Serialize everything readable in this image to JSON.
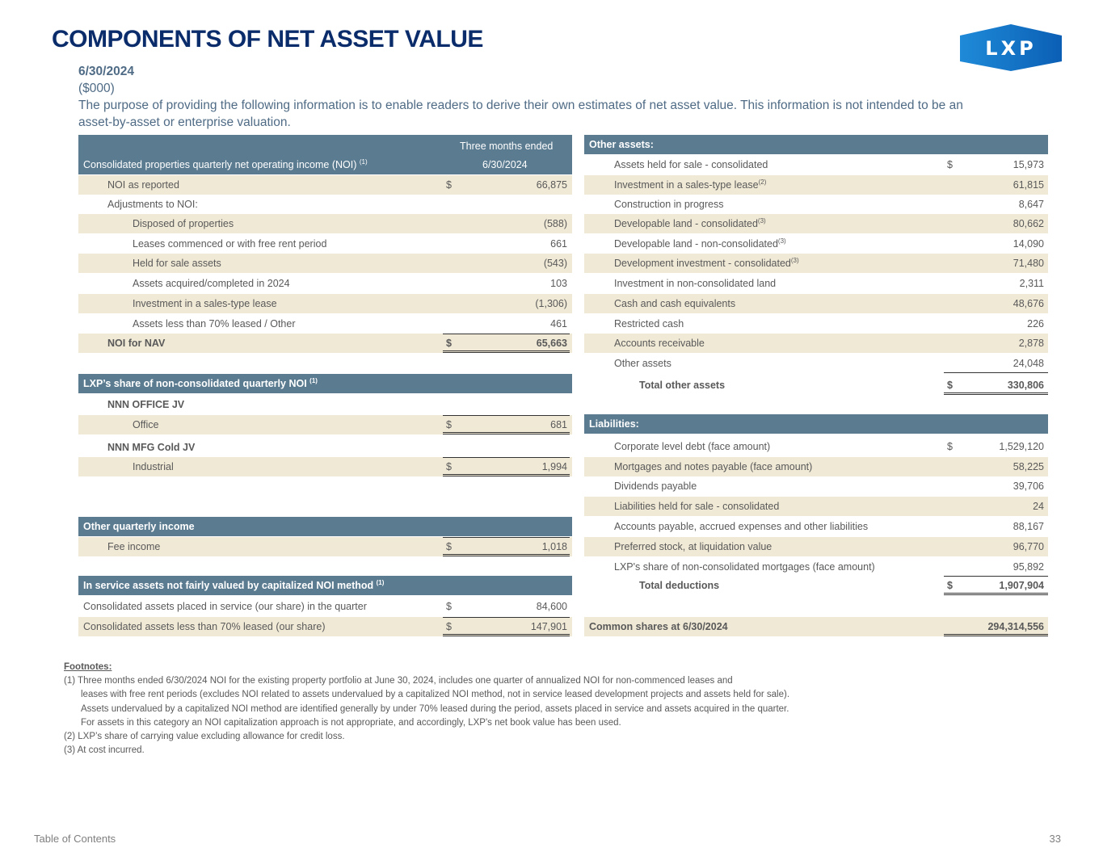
{
  "title": "COMPONENTS OF NET ASSET VALUE",
  "logo_text": "LXP",
  "date": "6/30/2024",
  "units": "($000)",
  "purpose_line1": "The purpose of providing the following information is to enable readers to derive their own estimates of net asset value. This information is not intended to be an",
  "purpose_line2": "asset-by-asset or enterprise valuation.",
  "left_header": {
    "label": "Consolidated properties quarterly net operating income (NOI)",
    "sup": "(1)",
    "col_line1": "Three months ended",
    "col_line2": "6/30/2024"
  },
  "left_rows": [
    {
      "label": "NOI as reported",
      "dollar": "$",
      "value": "66,875",
      "style": "beige",
      "indent": 1
    },
    {
      "label": "Adjustments to NOI:",
      "value": "",
      "style": "white",
      "indent": 1
    },
    {
      "label": "Disposed of properties",
      "value": "(588)",
      "style": "beige",
      "indent": 2
    },
    {
      "label": "Leases commenced or with free rent period",
      "value": "661",
      "style": "white",
      "indent": 2
    },
    {
      "label": "Held for sale assets",
      "value": "(543)",
      "style": "beige",
      "indent": 2
    },
    {
      "label": "Assets acquired/completed in 2024",
      "value": "103",
      "style": "white",
      "indent": 2
    },
    {
      "label": "Investment in a sales-type lease",
      "value": "(1,306)",
      "style": "beige",
      "indent": 2
    },
    {
      "label": "Assets less than 70% leased / Other",
      "value": "461",
      "style": "white",
      "indent": 2
    },
    {
      "label": "NOI for NAV",
      "dollar": "$",
      "value": "65,663",
      "style": "beige bold",
      "indent": 1
    },
    {
      "label": "LXP’s share of non-consolidated quarterly NOI",
      "sup": "(1)",
      "value": "",
      "style": "hdr",
      "indent": 0
    },
    {
      "label": "NNN OFFICE JV",
      "value": "",
      "style": "white bold",
      "indent": 1
    },
    {
      "label": "Office",
      "dollar": "$",
      "value": "681",
      "style": "beige",
      "indent": 2
    },
    {
      "label": "NNN MFG Cold JV",
      "value": "",
      "style": "white bold",
      "indent": 1
    },
    {
      "label": "Industrial",
      "dollar": "$",
      "value": "1,994",
      "style": "beige",
      "indent": 2
    },
    {
      "label": "Other quarterly income",
      "value": "",
      "style": "hdr",
      "indent": 0
    },
    {
      "label": "Fee income",
      "dollar": "$",
      "value": "1,018",
      "style": "beige",
      "indent": 1
    },
    {
      "label": "In service assets not fairly valued by capitalized NOI method",
      "sup": "(1)",
      "value": "",
      "style": "hdr",
      "indent": 0
    },
    {
      "label": "Consolidated assets placed in service (our share) in the quarter",
      "dollar": "$",
      "value": "84,600",
      "style": "white",
      "indent": 0
    },
    {
      "label": "Consolidated assets less than 70% leased (our share)",
      "dollar": "$",
      "value": "147,901",
      "style": "beige",
      "indent": 0
    }
  ],
  "right_rows": [
    {
      "label": "Other assets:",
      "value": "",
      "style": "hdr",
      "indent": 0
    },
    {
      "label": "Assets held for sale - consolidated",
      "dollar": "$",
      "value": "15,973",
      "style": "white",
      "indent": 1
    },
    {
      "label": "Investment in a sales-type lease",
      "sup": "(2)",
      "value": "61,815",
      "style": "beige",
      "indent": 1
    },
    {
      "label": "Construction in progress",
      "value": "8,647",
      "style": "white",
      "indent": 1
    },
    {
      "label": "Developable land - consolidated",
      "sup": "(3)",
      "value": "80,662",
      "style": "beige",
      "indent": 1
    },
    {
      "label": "Developable land - non-consolidated",
      "sup": "(3)",
      "value": "14,090",
      "style": "white",
      "indent": 1
    },
    {
      "label": "Development investment - consolidated",
      "sup": "(3)",
      "value": "71,480",
      "style": "beige",
      "indent": 1
    },
    {
      "label": "Investment in non-consolidated land",
      "value": "2,311",
      "style": "white",
      "indent": 1
    },
    {
      "label": "Cash and cash equivalents",
      "value": "48,676",
      "style": "beige",
      "indent": 1
    },
    {
      "label": "Restricted cash",
      "value": "226",
      "style": "white",
      "indent": 1
    },
    {
      "label": "Accounts receivable",
      "value": "2,878",
      "style": "beige",
      "indent": 1
    },
    {
      "label": "Other assets",
      "value": "24,048",
      "style": "white",
      "indent": 1
    },
    {
      "label": "Total other assets",
      "dollar": "$",
      "value": "330,806",
      "style": "white bold",
      "indent": 2
    },
    {
      "label": "Liabilities:",
      "value": "",
      "style": "hdr",
      "indent": 0
    },
    {
      "label": "Corporate level debt (face amount)",
      "dollar": "$",
      "value": "1,529,120",
      "style": "white",
      "indent": 1
    },
    {
      "label": "Mortgages and notes payable (face amount)",
      "value": "58,225",
      "style": "beige",
      "indent": 1
    },
    {
      "label": "Dividends payable",
      "value": "39,706",
      "style": "white",
      "indent": 1
    },
    {
      "label": "Liabilities held for sale - consolidated",
      "value": "24",
      "style": "beige",
      "indent": 1
    },
    {
      "label": "Accounts payable, accrued expenses and other liabilities",
      "value": "88,167",
      "style": "white",
      "indent": 1
    },
    {
      "label": "Preferred stock, at liquidation value",
      "value": "96,770",
      "style": "beige",
      "indent": 1
    },
    {
      "label": "LXP's share of non-consolidated mortgages (face amount)",
      "value": "95,892",
      "style": "white",
      "indent": 1
    },
    {
      "label": "Total deductions",
      "dollar": "$",
      "value": "1,907,904",
      "style": "white bold",
      "indent": 2
    },
    {
      "label": "Common shares at 6/30/2024",
      "value": "294,314,556",
      "style": "beige bold",
      "indent": 0
    }
  ],
  "footnotes": {
    "heading": "Footnotes:",
    "lines": [
      "(1)  Three months ended 6/30/2024 NOI for the existing property portfolio at June 30, 2024, includes one quarter of annualized NOI for non-commenced leases and",
      "leases with free rent periods (excludes NOI related to assets undervalued by a capitalized NOI method, not in service leased development projects and assets held for sale).",
      "Assets undervalued by a capitalized NOI method are identified generally by under 70% leased during the period, assets placed in service and assets acquired in the quarter.",
      "For assets in this category an NOI capitalization approach is not appropriate, and accordingly, LXP's net book value has been used.",
      "(2)  LXP’s share of carrying value excluding allowance for credit loss.",
      "(3)  At cost incurred."
    ]
  },
  "footer": {
    "toc": "Table of Contents",
    "page": "33"
  }
}
